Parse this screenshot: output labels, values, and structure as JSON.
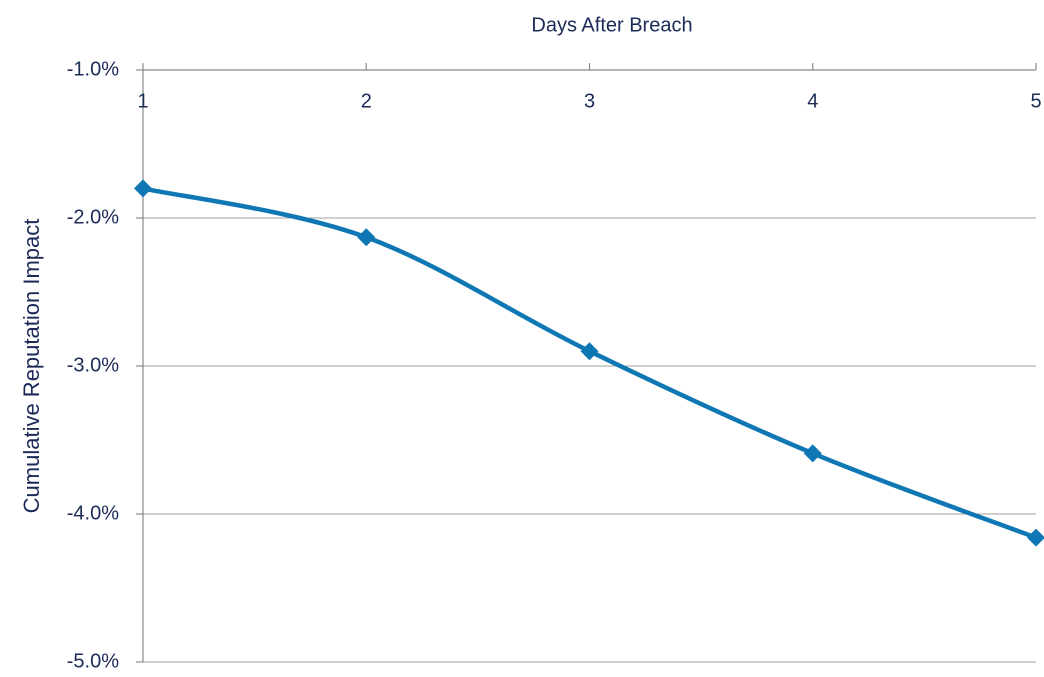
{
  "chart_data": {
    "type": "line",
    "title": "Days After Breach",
    "y_label": "Cumulative Reputation Impact",
    "x": [
      1,
      2,
      3,
      4,
      5
    ],
    "series": [
      {
        "name": "Cumulative Reputation Impact",
        "color": "#0f78b4",
        "values": [
          -1.8,
          -2.13,
          -2.9,
          -3.59,
          -4.16
        ]
      }
    ],
    "xlim": [
      1,
      5
    ],
    "xticks": [
      1,
      2,
      3,
      4,
      5
    ],
    "ylim": [
      -5,
      -1
    ],
    "yticks": [
      {
        "value": -1,
        "label": "-1.0%"
      },
      {
        "value": -2,
        "label": "-2.0%"
      },
      {
        "value": -3,
        "label": "-3.0%"
      },
      {
        "value": -4,
        "label": "-4.0%"
      },
      {
        "value": -5,
        "label": "-5.0%"
      }
    ],
    "grid": true
  }
}
